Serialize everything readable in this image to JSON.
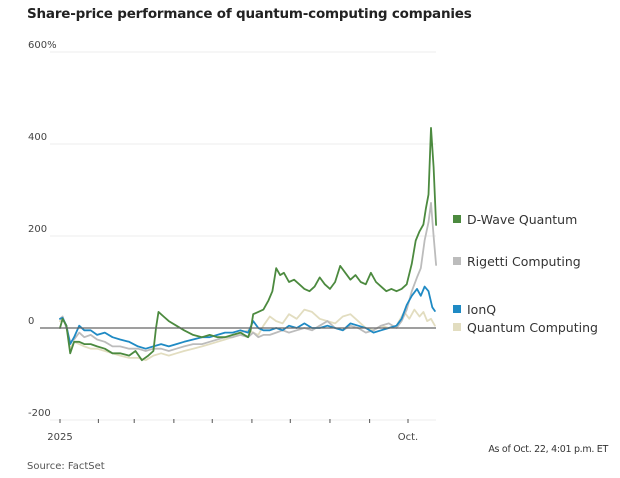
{
  "chart_data": {
    "type": "line",
    "title": "Share-price performance of quantum-computing companies",
    "xlabel": "",
    "ylabel": "",
    "x_unit": "days since Jan. 1, 2025",
    "xlim": [
      0,
      295
    ],
    "ylim": [
      -200,
      600
    ],
    "y_ticks": [
      {
        "value": 600,
        "label": "600%"
      },
      {
        "value": 400,
        "label": "400"
      },
      {
        "value": 200,
        "label": "200"
      },
      {
        "value": 0,
        "label": "0"
      },
      {
        "value": -200,
        "label": "-200"
      }
    ],
    "x_ticks": [
      {
        "value": 1,
        "label": "2025"
      },
      {
        "value": 31,
        "label": ""
      },
      {
        "value": 59,
        "label": ""
      },
      {
        "value": 90,
        "label": ""
      },
      {
        "value": 120,
        "label": ""
      },
      {
        "value": 151,
        "label": ""
      },
      {
        "value": 181,
        "label": ""
      },
      {
        "value": 212,
        "label": ""
      },
      {
        "value": 243,
        "label": ""
      },
      {
        "value": 273,
        "label": "Oct."
      }
    ],
    "grid": true,
    "zero_line": true,
    "legend_position": "right",
    "series": [
      {
        "name": "Quantum Computing",
        "color": "#e2ddc0",
        "x": [
          1,
          3,
          6,
          9,
          12,
          16,
          20,
          25,
          30,
          36,
          42,
          48,
          55,
          62,
          68,
          74,
          80,
          86,
          92,
          98,
          105,
          112,
          118,
          124,
          130,
          136,
          142,
          148,
          152,
          156,
          160,
          165,
          170,
          175,
          180,
          186,
          192,
          198,
          204,
          210,
          216,
          222,
          228,
          234,
          240,
          246,
          252,
          258,
          264,
          270,
          274,
          278,
          282,
          285,
          288,
          291,
          294
        ],
        "y": [
          15,
          20,
          5,
          -45,
          -30,
          -35,
          -40,
          -45,
          -45,
          -50,
          -55,
          -60,
          -65,
          -65,
          -70,
          -60,
          -55,
          -60,
          -55,
          -50,
          -45,
          -40,
          -35,
          -30,
          -25,
          -20,
          -10,
          -5,
          -10,
          -15,
          5,
          25,
          15,
          10,
          30,
          20,
          40,
          35,
          20,
          15,
          10,
          25,
          30,
          15,
          0,
          -5,
          5,
          0,
          5,
          35,
          20,
          40,
          25,
          35,
          15,
          20,
          5
        ]
      },
      {
        "name": "Rigetti Computing",
        "color": "#bcbcbc",
        "x": [
          1,
          3,
          6,
          9,
          12,
          16,
          20,
          25,
          30,
          36,
          42,
          48,
          55,
          62,
          68,
          74,
          80,
          86,
          92,
          98,
          105,
          112,
          118,
          124,
          130,
          136,
          142,
          148,
          152,
          156,
          160,
          165,
          170,
          175,
          180,
          186,
          192,
          198,
          204,
          210,
          216,
          222,
          228,
          234,
          240,
          246,
          252,
          258,
          264,
          268,
          272,
          276,
          280,
          283,
          286,
          289,
          291,
          293,
          295
        ],
        "y": [
          20,
          25,
          0,
          -30,
          -25,
          -10,
          -20,
          -15,
          -25,
          -30,
          -40,
          -40,
          -45,
          -45,
          -50,
          -45,
          -45,
          -50,
          -45,
          -40,
          -35,
          -35,
          -30,
          -25,
          -20,
          -20,
          -15,
          -20,
          -10,
          -20,
          -15,
          -15,
          -10,
          -5,
          -10,
          -5,
          0,
          -5,
          5,
          15,
          0,
          -5,
          5,
          0,
          -10,
          -5,
          5,
          10,
          0,
          15,
          40,
          80,
          110,
          130,
          190,
          230,
          272,
          200,
          137
        ]
      },
      {
        "name": "IonQ",
        "color": "#1f8ac4",
        "x": [
          1,
          3,
          6,
          9,
          12,
          16,
          20,
          25,
          30,
          36,
          42,
          48,
          55,
          62,
          68,
          74,
          80,
          86,
          92,
          98,
          105,
          112,
          118,
          124,
          130,
          136,
          142,
          148,
          152,
          156,
          160,
          165,
          170,
          175,
          180,
          186,
          192,
          198,
          204,
          210,
          216,
          222,
          228,
          234,
          240,
          246,
          252,
          258,
          264,
          268,
          272,
          276,
          280,
          283,
          286,
          289,
          292,
          294
        ],
        "y": [
          20,
          22,
          5,
          -35,
          -20,
          5,
          -5,
          -5,
          -15,
          -10,
          -20,
          -25,
          -30,
          -40,
          -45,
          -40,
          -35,
          -40,
          -35,
          -30,
          -25,
          -20,
          -20,
          -15,
          -10,
          -10,
          -5,
          -10,
          15,
          0,
          -5,
          -5,
          0,
          -5,
          5,
          0,
          10,
          0,
          0,
          5,
          0,
          -5,
          10,
          5,
          0,
          -10,
          -5,
          0,
          5,
          20,
          50,
          70,
          85,
          70,
          90,
          80,
          45,
          37
        ]
      },
      {
        "name": "D-Wave Quantum",
        "color": "#4c8a3f",
        "x": [
          1,
          3,
          6,
          9,
          12,
          16,
          20,
          25,
          30,
          36,
          42,
          48,
          55,
          60,
          65,
          70,
          74,
          76,
          78,
          82,
          86,
          92,
          98,
          105,
          112,
          118,
          124,
          130,
          136,
          142,
          148,
          150,
          152,
          156,
          160,
          164,
          167,
          170,
          173,
          176,
          180,
          184,
          188,
          192,
          196,
          200,
          204,
          208,
          212,
          216,
          220,
          224,
          228,
          232,
          236,
          240,
          244,
          248,
          252,
          256,
          260,
          264,
          268,
          272,
          276,
          279,
          282,
          285,
          287,
          289,
          291,
          293,
          295
        ],
        "y": [
          0,
          20,
          5,
          -55,
          -30,
          -30,
          -35,
          -35,
          -40,
          -45,
          -55,
          -55,
          -60,
          -50,
          -70,
          -60,
          -50,
          0,
          35,
          25,
          15,
          5,
          -5,
          -15,
          -20,
          -15,
          -20,
          -20,
          -15,
          -10,
          -20,
          -5,
          30,
          35,
          40,
          60,
          80,
          130,
          115,
          120,
          100,
          105,
          95,
          85,
          80,
          90,
          110,
          95,
          85,
          100,
          135,
          120,
          105,
          115,
          100,
          95,
          120,
          100,
          90,
          80,
          85,
          80,
          85,
          95,
          140,
          190,
          210,
          225,
          260,
          290,
          435,
          350,
          224
        ]
      }
    ],
    "legend": [
      {
        "label": "D-Wave Quantum",
        "color": "#4c8a3f"
      },
      {
        "label": "Rigetti Computing",
        "color": "#bcbcbc"
      },
      {
        "label": "IonQ",
        "color": "#1f8ac4"
      },
      {
        "label": "Quantum Computing",
        "color": "#e2ddc0"
      }
    ]
  },
  "footer": {
    "as_of": "As of Oct. 22, 4:01 p.m. ET",
    "source": "Source: FactSet"
  }
}
